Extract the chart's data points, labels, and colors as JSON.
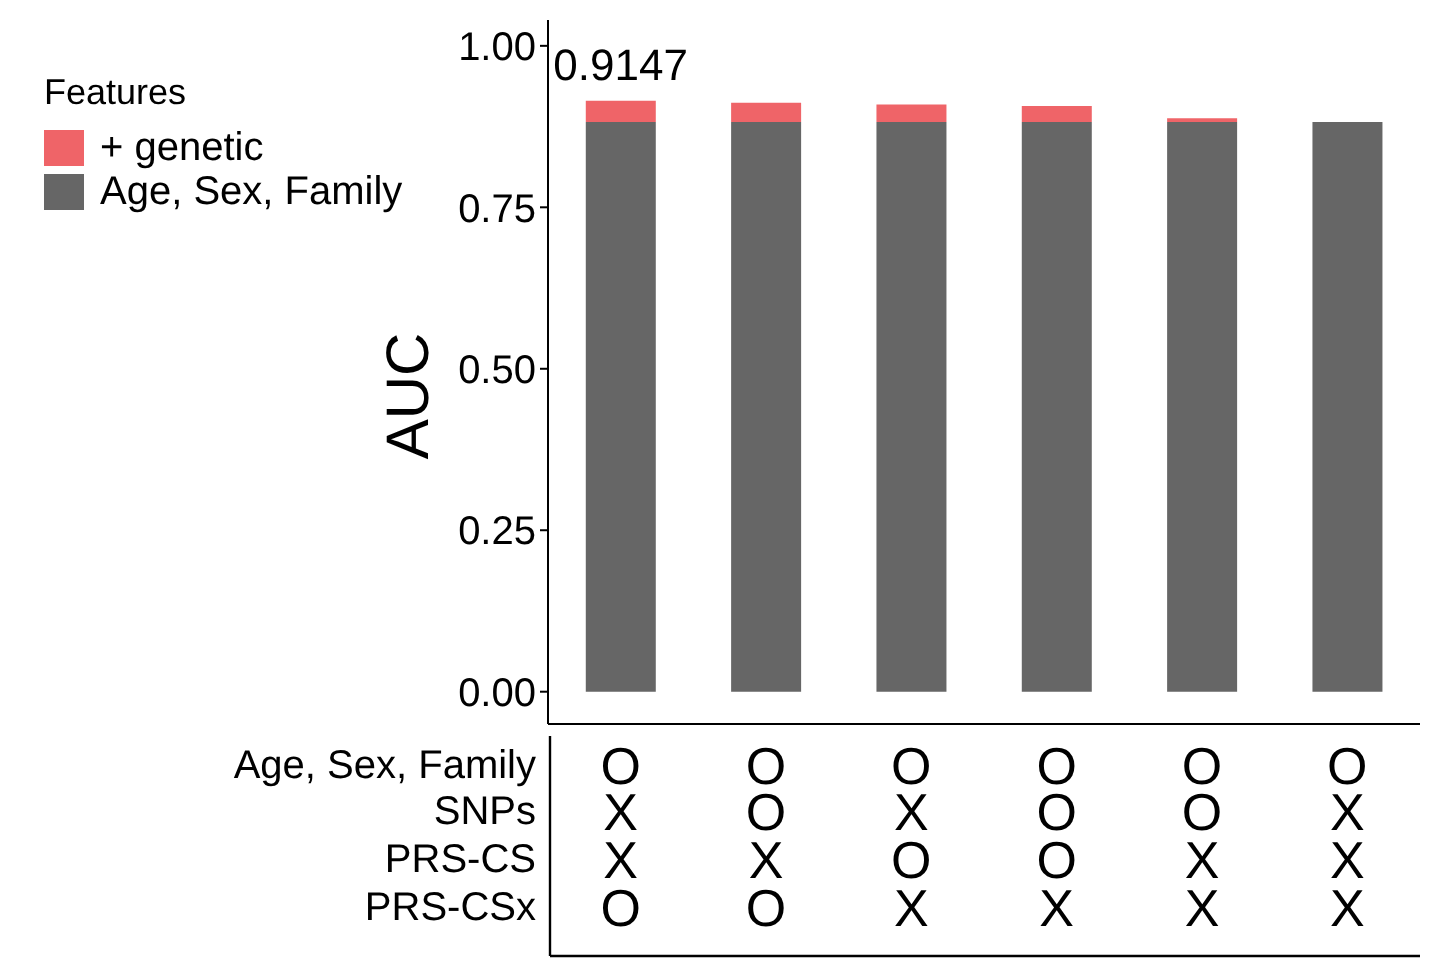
{
  "chart_data": {
    "type": "bar",
    "stacked": true,
    "ylabel": "AUC",
    "legend_title": "Features",
    "legend": "top left",
    "categories": [
      "O\nX\nX\nO",
      "O\nO\nX\nO",
      "O\nX\nO\nX",
      "O\nO\nO\nX",
      "O\nO\nX\nX",
      "O\nX\nX\nX"
    ],
    "annotations": [
      "Age, Sex, Family",
      "SNPs",
      "PRS-CS",
      "PRS-CSx",
      {
        "text": "0.9147",
        "x": "O\nX\nX\nO",
        "y": 0.9147
      }
    ],
    "series": [
      {
        "name": "Age, Sex, Family",
        "color": "#666666",
        "values": [
          0.882,
          0.882,
          0.882,
          0.882,
          0.882,
          0.882
        ]
      },
      {
        "name": "+ genetic",
        "color": "#ef6468",
        "values": [
          0.033,
          0.03,
          0.027,
          0.025,
          0.006,
          0
        ]
      }
    ],
    "ylim": [
      -0.05,
      1.04
    ],
    "yticks": [
      {
        "value": 0,
        "label": "0.00"
      },
      {
        "value": 0.25,
        "label": "0.25"
      },
      {
        "value": 0.5,
        "label": "0.50"
      },
      {
        "value": 0.75,
        "label": "0.75"
      },
      {
        "value": 1,
        "label": "1.00"
      }
    ]
  }
}
